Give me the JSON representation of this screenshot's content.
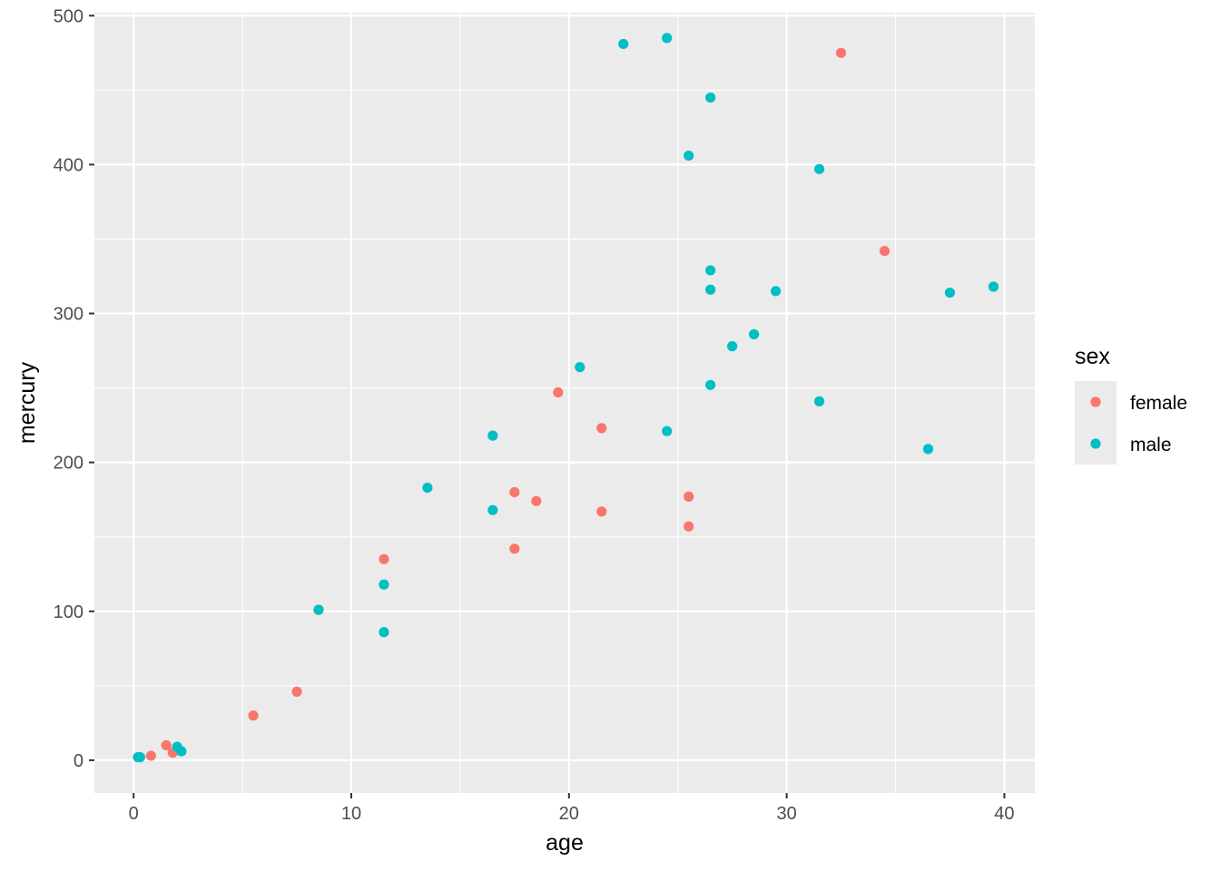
{
  "chart_data": {
    "type": "scatter",
    "title": "",
    "xlabel": "age",
    "ylabel": "mercury",
    "xlim": [
      -1.8,
      41.4
    ],
    "ylim": [
      -22,
      502
    ],
    "x_ticks": [
      0,
      10,
      20,
      30,
      40
    ],
    "y_ticks": [
      0,
      100,
      200,
      300,
      400,
      500
    ],
    "x_tick_labels": [
      "0",
      "10",
      "20",
      "30",
      "40"
    ],
    "y_tick_labels": [
      "0",
      "100",
      "200",
      "300",
      "400",
      "500"
    ],
    "grid": true,
    "background": "#ebebeb",
    "legend": {
      "title": "sex",
      "position": "right"
    },
    "series": [
      {
        "name": "female",
        "color": "#f8766d",
        "points": [
          [
            0.8,
            3
          ],
          [
            1.5,
            10
          ],
          [
            1.8,
            5
          ],
          [
            5.5,
            30
          ],
          [
            7.5,
            46
          ],
          [
            8.5,
            101
          ],
          [
            11.5,
            135
          ],
          [
            17.5,
            180
          ],
          [
            17.5,
            142
          ],
          [
            18.5,
            174
          ],
          [
            19.5,
            247
          ],
          [
            21.5,
            223
          ],
          [
            21.5,
            167
          ],
          [
            25.5,
            177
          ],
          [
            25.5,
            157
          ],
          [
            32.5,
            475
          ],
          [
            34.5,
            342
          ]
        ]
      },
      {
        "name": "male",
        "color": "#00bfc4",
        "points": [
          [
            0.2,
            2
          ],
          [
            0.3,
            2
          ],
          [
            2.0,
            9
          ],
          [
            2.2,
            6
          ],
          [
            8.5,
            101
          ],
          [
            11.5,
            118
          ],
          [
            11.5,
            86
          ],
          [
            13.5,
            183
          ],
          [
            16.5,
            218
          ],
          [
            16.5,
            168
          ],
          [
            20.5,
            264
          ],
          [
            22.5,
            481
          ],
          [
            24.5,
            485
          ],
          [
            24.5,
            221
          ],
          [
            25.5,
            406
          ],
          [
            26.5,
            445
          ],
          [
            26.5,
            329
          ],
          [
            26.5,
            316
          ],
          [
            26.5,
            252
          ],
          [
            27.5,
            278
          ],
          [
            28.5,
            286
          ],
          [
            29.5,
            315
          ],
          [
            31.5,
            397
          ],
          [
            31.5,
            241
          ],
          [
            36.5,
            209
          ],
          [
            37.5,
            314
          ],
          [
            39.5,
            318
          ]
        ]
      }
    ]
  }
}
